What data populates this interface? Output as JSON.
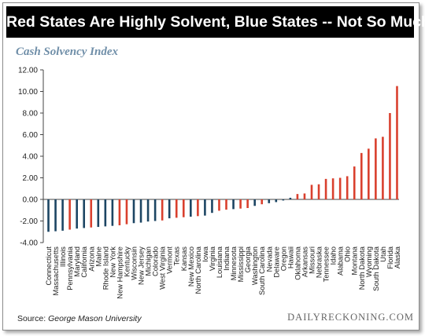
{
  "header": {
    "title": "Red States Are Highly Solvent, Blue States -- Not So Much"
  },
  "subtitle": "Cash Solvency Index",
  "source": {
    "prefix": "Source: ",
    "name": "George Mason University"
  },
  "brand": "DAILYRECKONING.COM",
  "colors": {
    "red": "#d9402e",
    "blue": "#1c4563",
    "axis": "#444444",
    "banner": "#000000"
  },
  "chart_data": {
    "type": "bar",
    "ylim": [
      -4,
      12
    ],
    "yticks": [
      "-4.00",
      "-2.00",
      "0.00",
      "2.00",
      "4.00",
      "6.00",
      "8.00",
      "10.00",
      "12.00"
    ],
    "categories": [
      "Connecticut",
      "Massachusetts",
      "Illinois",
      "Pennsylvania",
      "Maryland",
      "California",
      "Arizona",
      "Maine",
      "Rhode Island",
      "New York",
      "New Hampshire",
      "Kentucky",
      "Wisconsin",
      "New Jersey",
      "Michigan",
      "Colorado",
      "West Virginia",
      "Vermont",
      "Texas",
      "Kansas",
      "New Mexico",
      "North Carolina",
      "Iowa",
      "Virginia",
      "Louisiana",
      "Indiana",
      "Minnesota",
      "Mississippi",
      "Georgia",
      "Washington",
      "South Carolina",
      "Nevada",
      "Delaware",
      "Oregon",
      "Hawaii",
      "Oklahoma",
      "Arkansas",
      "Missouri",
      "Nebraska",
      "Tennessee",
      "Idaho",
      "Alabama",
      "Ohio",
      "Montana",
      "North Dakota",
      "Wyoming",
      "South Dakota",
      "Utah",
      "Florida",
      "Alaska"
    ],
    "values": [
      -3.0,
      -2.95,
      -2.9,
      -2.8,
      -2.7,
      -2.65,
      -2.6,
      -2.55,
      -2.5,
      -2.45,
      -2.4,
      -2.3,
      -2.2,
      -2.15,
      -2.05,
      -2.0,
      -1.95,
      -1.75,
      -1.7,
      -1.65,
      -1.6,
      -1.55,
      -1.5,
      -1.25,
      -1.05,
      -0.95,
      -0.9,
      -0.85,
      -0.8,
      -0.6,
      -0.45,
      -0.35,
      -0.25,
      -0.1,
      0.15,
      0.5,
      0.55,
      1.35,
      1.4,
      1.9,
      1.95,
      2.0,
      2.15,
      3.05,
      4.3,
      4.7,
      5.65,
      5.8,
      8.0,
      10.5
    ],
    "bar_colors": [
      "blue",
      "blue",
      "blue",
      "red",
      "blue",
      "blue",
      "red",
      "blue",
      "blue",
      "blue",
      "red",
      "red",
      "blue",
      "blue",
      "blue",
      "blue",
      "red",
      "blue",
      "red",
      "red",
      "blue",
      "red",
      "blue",
      "blue",
      "red",
      "red",
      "blue",
      "red",
      "red",
      "blue",
      "red",
      "blue",
      "blue",
      "blue",
      "blue",
      "red",
      "red",
      "red",
      "red",
      "red",
      "red",
      "red",
      "red",
      "red",
      "red",
      "red",
      "red",
      "red",
      "red",
      "red"
    ]
  }
}
